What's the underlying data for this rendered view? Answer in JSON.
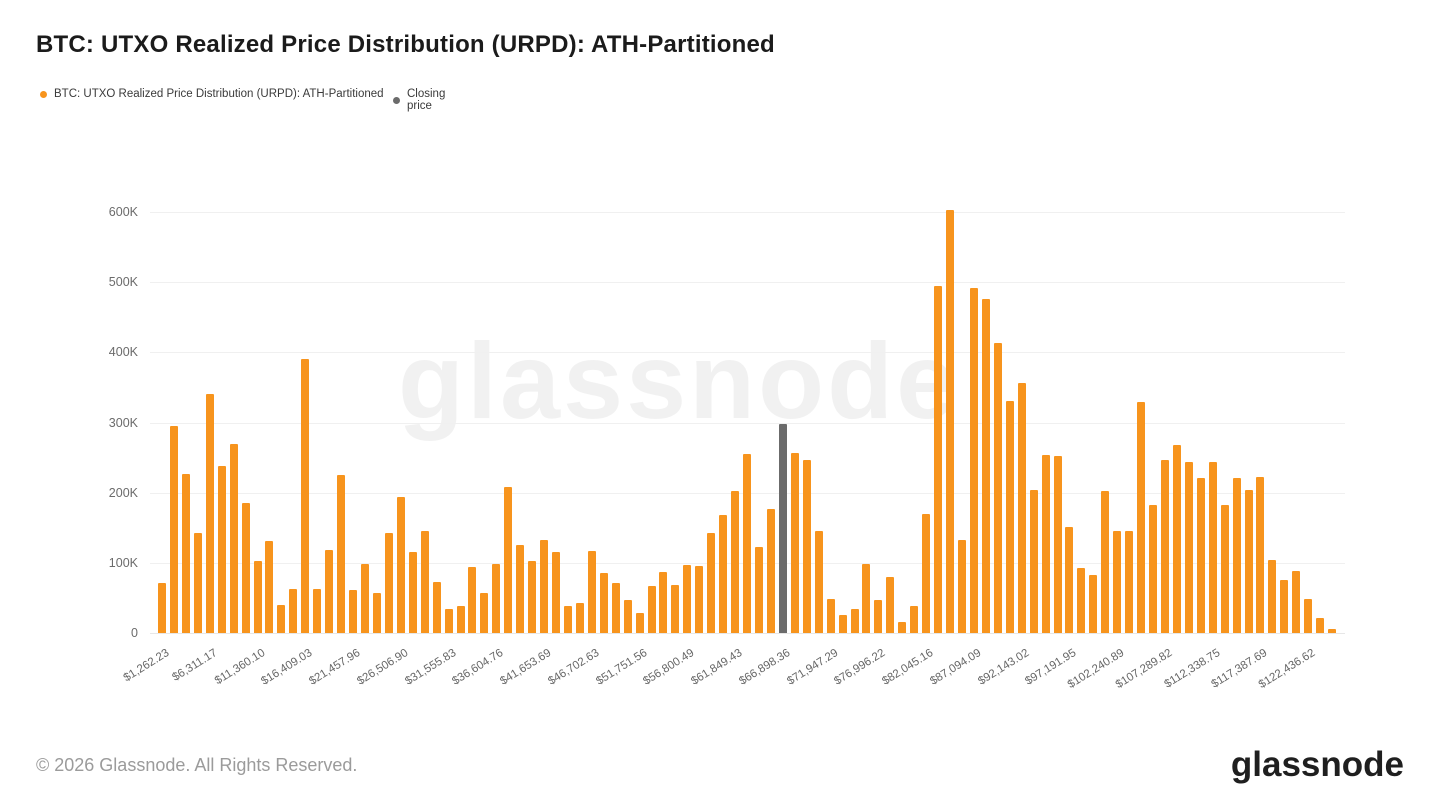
{
  "title": "BTC: UTXO Realized Price Distribution (URPD): ATH-Partitioned",
  "legend": [
    {
      "label": "BTC: UTXO Realized Price Distribution (URPD): ATH-Partitioned",
      "color": "#F7941D"
    },
    {
      "label": "Closing price",
      "color": "#6b6b6b"
    }
  ],
  "watermark": "glassnode",
  "footer": {
    "copyright": "© 2026 Glassnode. All Rights Reserved.",
    "logo": "glassnode"
  },
  "chart_data": {
    "type": "bar",
    "title": "BTC: UTXO Realized Price Distribution (URPD): ATH-Partitioned",
    "xlabel": "",
    "ylabel": "",
    "ylim": [
      0,
      600000
    ],
    "grid": "horizontal",
    "legend_position": "top-left",
    "yticks": [
      "0",
      "100K",
      "200K",
      "300K",
      "400K",
      "500K",
      "600K"
    ],
    "bar_color": "#F7941D",
    "closing_bar_color": "#6b6b6b",
    "bin_width_usd": 1262.23,
    "x_tick_every": 4,
    "x_tick_labels": [
      "$1,262.23",
      "$6,311.17",
      "$11,360.10",
      "$16,409.03",
      "$21,457.96",
      "$26,506.90",
      "$31,555.83",
      "$36,604.76",
      "$41,653.69",
      "$46,702.63",
      "$51,751.56",
      "$56,800.49",
      "$61,849.43",
      "$66,898.36",
      "$71,947.29",
      "$76,996.22",
      "$82,045.16",
      "$87,094.09",
      "$92,143.02",
      "$97,191.95",
      "$102,240.89",
      "$107,289.82",
      "$112,338.75",
      "$117,387.69",
      "$122,436.62"
    ],
    "values_thousands": [
      71,
      295,
      226,
      143,
      340,
      238,
      269,
      185,
      103,
      131,
      40,
      62,
      390,
      62,
      119,
      225,
      61,
      98,
      57,
      142,
      194,
      116,
      145,
      73,
      34,
      38,
      94,
      57,
      99,
      208,
      125,
      103,
      133,
      116,
      38,
      43,
      117,
      85,
      71,
      47,
      29,
      67,
      87,
      68,
      97,
      95,
      143,
      168,
      202,
      255,
      122,
      177,
      298,
      257,
      247,
      145,
      48,
      26,
      34,
      99,
      47,
      80,
      15,
      38,
      169,
      495,
      603,
      132,
      491,
      476,
      413,
      330,
      356,
      204,
      253,
      252,
      151,
      93,
      83,
      202,
      145,
      146,
      329,
      183,
      247,
      268,
      244,
      221,
      244,
      183,
      221,
      204,
      223,
      104,
      76,
      88,
      48,
      21,
      5
    ],
    "closing_price_bar_index": 52,
    "closing_price_bin_label": "$66,898.36",
    "closing_price_value_thousands": 298
  }
}
